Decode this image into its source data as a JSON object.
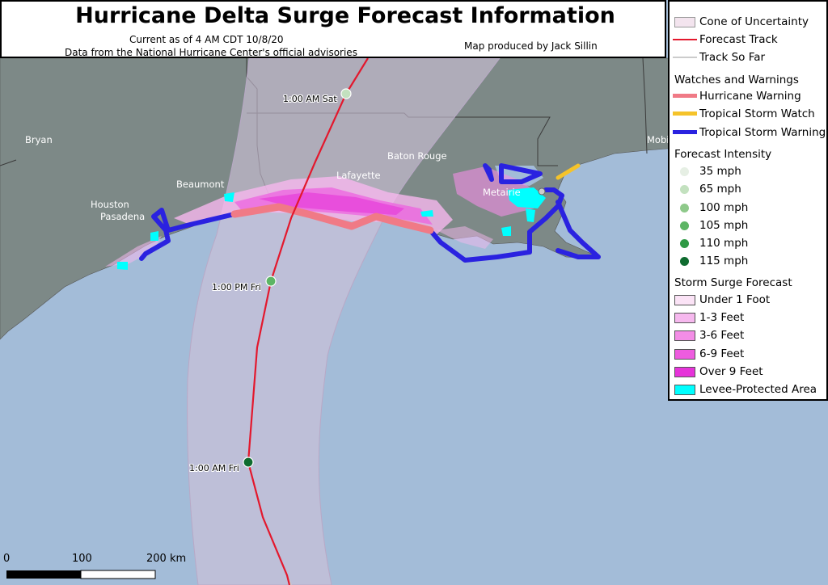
{
  "title": "Hurricane Delta Surge Forecast Information",
  "subtitle_current": "Current as of 4 AM CDT 10/8/20",
  "subtitle_source": "Data from the National Hurricane Center's official advisories",
  "credit": "Map produced by Jack Sillin",
  "colors": {
    "land": "#7d8987",
    "water": "#a3bcd8",
    "cone": "#cfc2d8",
    "forecast_track": "#e3182d",
    "track_so_far": "#cccccc",
    "hurricane_warning": "#f07a86",
    "tropical_storm_watch": "#f5c32a",
    "tropical_storm_warning": "#2a22e0",
    "levee": "#00ffff"
  },
  "legend": {
    "cone": "Cone of Uncertainty",
    "forecast_track": "Forecast Track",
    "track_so_far": "Track So Far",
    "watches_header": "Watches and Warnings",
    "hurricane_warning": "Hurricane Warning",
    "ts_watch": "Tropical Storm Watch",
    "ts_warning": "Tropical Storm Warning",
    "intensity_header": "Forecast Intensity",
    "intensity": [
      {
        "label": "35 mph",
        "color": "#e6efe4"
      },
      {
        "label": "65 mph",
        "color": "#c3e1bf"
      },
      {
        "label": "100 mph",
        "color": "#8ec98a"
      },
      {
        "label": "105 mph",
        "color": "#5db565"
      },
      {
        "label": "110 mph",
        "color": "#2f9a45"
      },
      {
        "label": "115 mph",
        "color": "#0f6b2f"
      }
    ],
    "surge_header": "Storm Surge Forecast",
    "surge": [
      {
        "label": "Under 1 Foot",
        "color": "#fbe3f6"
      },
      {
        "label": "1-3 Feet",
        "color": "#f6b8ee"
      },
      {
        "label": "3-6 Feet",
        "color": "#f38de6"
      },
      {
        "label": "6-9 Feet",
        "color": "#ee5cdf"
      },
      {
        "label": "Over 9 Feet",
        "color": "#e633d9"
      },
      {
        "label": "Levee-Protected Area",
        "color": "#00ffff"
      }
    ]
  },
  "places": {
    "bryan": "Bryan",
    "beaumont": "Beaumont",
    "houston": "Houston",
    "pasadena": "Pasadena",
    "lafayette": "Lafayette",
    "baton_rouge": "Baton Rouge",
    "metairie": "Metairie",
    "mobile": "Mobi"
  },
  "track_points": [
    {
      "label": "1:00 AM Sat",
      "intensity": "35 mph"
    },
    {
      "label": "1:00 PM Fri",
      "intensity": "105 mph"
    },
    {
      "label": "1:00 AM Fri",
      "intensity": "115 mph"
    }
  ],
  "scale": {
    "zero": "0",
    "mid": "100",
    "end": "200 km"
  }
}
